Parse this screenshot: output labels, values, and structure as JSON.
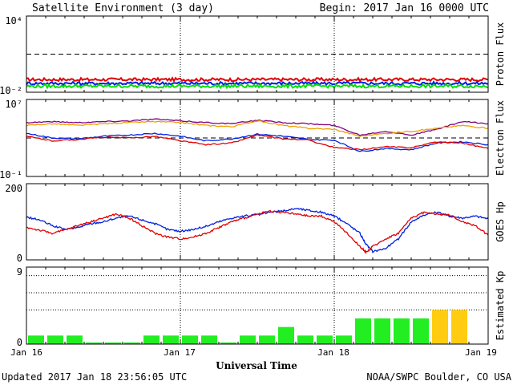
{
  "header": {
    "title": "Satellite Environment (3 day)",
    "begin": "Begin:  2017 Jan 16 0000 UTC"
  },
  "footer": {
    "updated": "Updated 2017 Jan 18 23:56:05 UTC",
    "credit": "NOAA/SWPC Boulder, CO USA",
    "xlabel": "Universal Time"
  },
  "x_ticks": [
    "Jan 16",
    "Jan 17",
    "Jan 18",
    "Jan 19"
  ],
  "colors": {
    "red": "#e00000",
    "blue": "#0020e0",
    "green": "#00e000",
    "purple": "#800080",
    "orange": "#f0a000",
    "kp_green": "#22ee22",
    "kp_yellow": "#ffcc11"
  },
  "chart_data": [
    {
      "type": "line",
      "ylabel": "Proton Flux",
      "yscale": "log",
      "ylim": [
        0.01,
        10000
      ],
      "ytick_labels": [
        "10⁴",
        "10⁻²"
      ],
      "threshold": 10,
      "x_range_hours": [
        0,
        72
      ],
      "series": [
        {
          "color": "red",
          "level": 0.1
        },
        {
          "color": "blue",
          "level": 0.05
        },
        {
          "color": "green",
          "level": 0.03
        }
      ]
    },
    {
      "type": "line",
      "ylabel": "Electron Flux",
      "yscale": "log",
      "ylim": [
        0.1,
        10000000
      ],
      "ytick_labels": [
        "10⁷",
        "10⁻¹"
      ],
      "threshold": 1000,
      "x_range_hours": [
        0,
        72
      ],
      "series": [
        {
          "color": "purple",
          "x": [
            0,
            4,
            8,
            12,
            16,
            20,
            24,
            28,
            32,
            36,
            40,
            44,
            48,
            52,
            56,
            60,
            64,
            68,
            72
          ],
          "y": [
            40000,
            50000,
            40000,
            50000,
            60000,
            90000,
            60000,
            40000,
            30000,
            70000,
            40000,
            30000,
            20000,
            2000,
            5000,
            2000,
            8000,
            50000,
            30000
          ]
        },
        {
          "color": "orange",
          "x": [
            0,
            4,
            8,
            12,
            16,
            20,
            24,
            28,
            32,
            36,
            40,
            44,
            48,
            52,
            56,
            60,
            64,
            68,
            72
          ],
          "y": [
            20000,
            30000,
            20000,
            30000,
            40000,
            50000,
            40000,
            20000,
            15000,
            60000,
            20000,
            10000,
            8000,
            1500,
            3000,
            5000,
            10000,
            20000,
            10000
          ]
        },
        {
          "color": "blue",
          "x": [
            0,
            4,
            8,
            12,
            16,
            20,
            24,
            28,
            32,
            36,
            40,
            44,
            48,
            52,
            56,
            60,
            64,
            68,
            72
          ],
          "y": [
            3000,
            1000,
            800,
            1500,
            2000,
            3000,
            1500,
            500,
            800,
            2500,
            1500,
            700,
            600,
            40,
            80,
            60,
            300,
            400,
            200
          ]
        },
        {
          "color": "red",
          "x": [
            0,
            4,
            8,
            12,
            16,
            20,
            24,
            28,
            32,
            36,
            40,
            44,
            48,
            52,
            56,
            60,
            64,
            68,
            72
          ],
          "y": [
            1500,
            500,
            700,
            1200,
            1000,
            1500,
            500,
            200,
            300,
            2000,
            800,
            600,
            100,
            60,
            120,
            100,
            400,
            300,
            80
          ]
        }
      ]
    },
    {
      "type": "line",
      "ylabel": "GOES Hp",
      "ylim": [
        0,
        200
      ],
      "ytick_labels": [
        "200",
        "0"
      ],
      "x_range_hours": [
        0,
        72
      ],
      "series": [
        {
          "color": "blue",
          "x": [
            0,
            2,
            4,
            6,
            8,
            10,
            12,
            14,
            16,
            18,
            20,
            22,
            24,
            26,
            28,
            30,
            32,
            34,
            36,
            38,
            40,
            42,
            44,
            46,
            48,
            50,
            52,
            53,
            54,
            56,
            58,
            60,
            62,
            64,
            66,
            68,
            70,
            72
          ],
          "y": [
            112,
            105,
            90,
            80,
            85,
            95,
            100,
            110,
            115,
            105,
            95,
            80,
            75,
            80,
            88,
            100,
            110,
            115,
            118,
            125,
            128,
            135,
            130,
            125,
            115,
            95,
            70,
            40,
            22,
            30,
            55,
            100,
            118,
            125,
            115,
            110,
            115,
            108
          ]
        },
        {
          "color": "red",
          "x": [
            0,
            2,
            4,
            6,
            8,
            10,
            12,
            14,
            16,
            18,
            20,
            22,
            24,
            26,
            28,
            30,
            32,
            34,
            36,
            38,
            40,
            42,
            44,
            46,
            48,
            50,
            52,
            53,
            54,
            56,
            58,
            60,
            62,
            64,
            66,
            68,
            70,
            72
          ],
          "y": [
            85,
            78,
            70,
            78,
            90,
            100,
            110,
            120,
            110,
            90,
            70,
            60,
            55,
            60,
            70,
            85,
            100,
            110,
            120,
            128,
            125,
            120,
            115,
            115,
            100,
            70,
            35,
            20,
            35,
            55,
            70,
            110,
            125,
            120,
            118,
            100,
            90,
            65
          ]
        }
      ]
    },
    {
      "type": "bar",
      "ylabel": "Estimated Kp",
      "ylim": [
        0,
        9
      ],
      "ytick_labels": [
        "9",
        "0"
      ],
      "dotted_levels": [
        4,
        6,
        8
      ],
      "x_range_hours": [
        0,
        72
      ],
      "interval_hours": 3,
      "values": [
        1,
        1,
        1,
        0,
        0,
        0,
        1,
        1,
        1,
        1,
        0,
        1,
        1,
        2,
        1,
        1,
        1,
        3,
        3,
        3,
        3,
        4,
        4
      ],
      "bar_colors": [
        "kp_green",
        "kp_green",
        "kp_green",
        "kp_green",
        "kp_green",
        "kp_green",
        "kp_green",
        "kp_green",
        "kp_green",
        "kp_green",
        "kp_green",
        "kp_green",
        "kp_green",
        "kp_green",
        "kp_green",
        "kp_green",
        "kp_green",
        "kp_green",
        "kp_green",
        "kp_green",
        "kp_green",
        "kp_yellow",
        "kp_yellow"
      ]
    }
  ]
}
